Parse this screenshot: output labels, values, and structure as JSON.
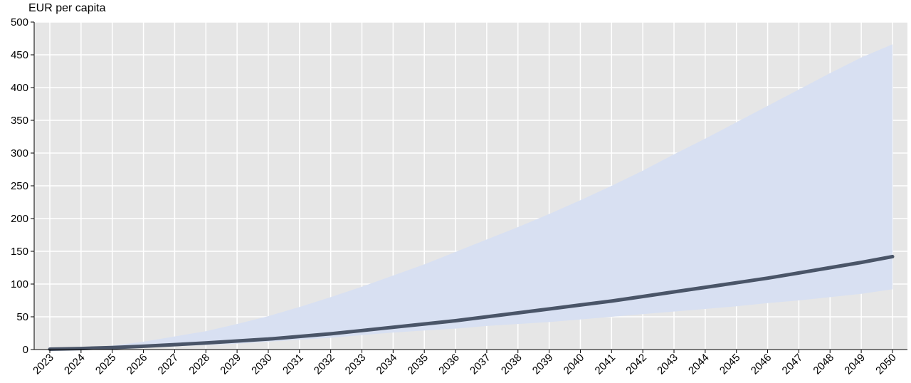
{
  "chart_data": {
    "type": "area",
    "ylabel": "EUR per capita",
    "ylim": [
      0,
      500
    ],
    "yticks": [
      0,
      50,
      100,
      150,
      200,
      250,
      300,
      350,
      400,
      450,
      500
    ],
    "grid": true,
    "x": [
      "2023",
      "2024",
      "2025",
      "2026",
      "2027",
      "2028",
      "2029",
      "2030",
      "2031",
      "2032",
      "2033",
      "2034",
      "2035",
      "2036",
      "2037",
      "2038",
      "2039",
      "2040",
      "2041",
      "2042",
      "2043",
      "2044",
      "2045",
      "2046",
      "2047",
      "2048",
      "2049",
      "2050"
    ],
    "series": [
      {
        "type": "line",
        "values": [
          0.5,
          1.5,
          3,
          5,
          7.5,
          10,
          13,
          16,
          20,
          24,
          29,
          34,
          39,
          44,
          50,
          56,
          62,
          68,
          74,
          81,
          88,
          95,
          102,
          109,
          117,
          125,
          133,
          142
        ]
      },
      {
        "type": "band",
        "lower": [
          0.3,
          1,
          2,
          3,
          5,
          7,
          9,
          12,
          15,
          18,
          22,
          26,
          29,
          32,
          36,
          39,
          42,
          46,
          50,
          54,
          58,
          62,
          66,
          71,
          75,
          80,
          85,
          92
        ],
        "upper": [
          0.5,
          2,
          6,
          12,
          20,
          28,
          39,
          51,
          65,
          80,
          96,
          113,
          130,
          149,
          168,
          187,
          207,
          228,
          250,
          273,
          298,
          322,
          347,
          372,
          397,
          422,
          446,
          466
        ]
      }
    ],
    "colors": {
      "plot_background": "#e6e6e6",
      "grid": "#ffffff",
      "band": "#d8e0f2",
      "line": "#4a5568"
    }
  }
}
